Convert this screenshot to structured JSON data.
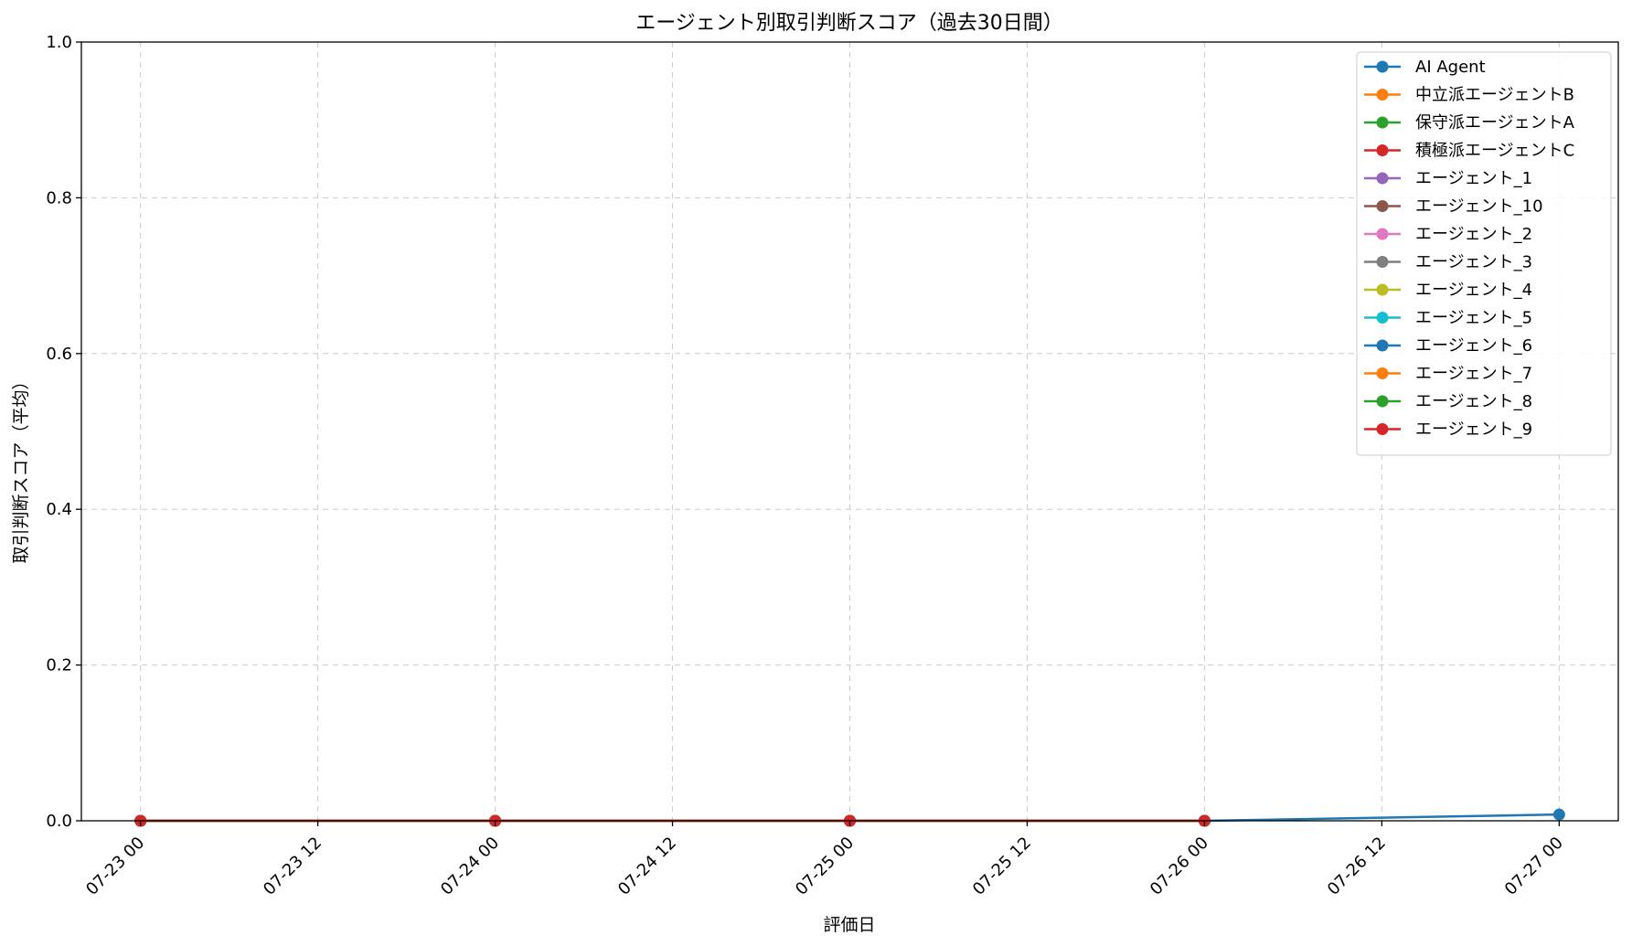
{
  "chart_data": {
    "type": "line",
    "title": "エージェント別取引判断スコア（過去30日間）",
    "xlabel": "評価日",
    "ylabel": "取引判断スコア（平均）",
    "x_type": "datetime",
    "xlim": [
      "2025-07-22 20:00",
      "2025-07-27 04:00"
    ],
    "ylim": [
      0,
      1.0
    ],
    "x_ticks": [
      {
        "value": "2025-07-23 00:00",
        "label": "07-23 00"
      },
      {
        "value": "2025-07-23 12:00",
        "label": "07-23 12"
      },
      {
        "value": "2025-07-24 00:00",
        "label": "07-24 00"
      },
      {
        "value": "2025-07-24 12:00",
        "label": "07-24 12"
      },
      {
        "value": "2025-07-25 00:00",
        "label": "07-25 00"
      },
      {
        "value": "2025-07-25 12:00",
        "label": "07-25 12"
      },
      {
        "value": "2025-07-26 00:00",
        "label": "07-26 00"
      },
      {
        "value": "2025-07-26 12:00",
        "label": "07-26 12"
      },
      {
        "value": "2025-07-27 00:00",
        "label": "07-27 00"
      }
    ],
    "y_ticks": [
      {
        "value": 0.0,
        "label": "0.0"
      },
      {
        "value": 0.2,
        "label": "0.2"
      },
      {
        "value": 0.4,
        "label": "0.4"
      },
      {
        "value": 0.6,
        "label": "0.6"
      },
      {
        "value": 0.8,
        "label": "0.8"
      },
      {
        "value": 1.0,
        "label": "1.0"
      }
    ],
    "grid": true,
    "legend_position": "top-right",
    "series": [
      {
        "name": "AI Agent",
        "color": "#1f77b4",
        "points": [
          {
            "x": "2025-07-26 00:00",
            "y": 0.0
          },
          {
            "x": "2025-07-27 00:00",
            "y": 0.008
          }
        ]
      },
      {
        "name": "中立派エージェントB",
        "color": "#ff7f0e",
        "points": [
          {
            "x": "2025-07-23 00:00",
            "y": 0.0
          },
          {
            "x": "2025-07-24 00:00",
            "y": 0.0
          },
          {
            "x": "2025-07-25 00:00",
            "y": 0.0
          },
          {
            "x": "2025-07-26 00:00",
            "y": 0.0
          }
        ]
      },
      {
        "name": "保守派エージェントA",
        "color": "#2ca02c",
        "points": [
          {
            "x": "2025-07-23 00:00",
            "y": 0.0
          },
          {
            "x": "2025-07-24 00:00",
            "y": 0.0
          },
          {
            "x": "2025-07-25 00:00",
            "y": 0.0
          },
          {
            "x": "2025-07-26 00:00",
            "y": 0.0
          }
        ]
      },
      {
        "name": "積極派エージェントC",
        "color": "#d62728",
        "points": [
          {
            "x": "2025-07-23 00:00",
            "y": 0.0
          },
          {
            "x": "2025-07-24 00:00",
            "y": 0.0
          },
          {
            "x": "2025-07-25 00:00",
            "y": 0.0
          },
          {
            "x": "2025-07-26 00:00",
            "y": 0.0
          }
        ]
      },
      {
        "name": "エージェント_1",
        "color": "#9467bd",
        "points": [
          {
            "x": "2025-07-23 00:00",
            "y": 0.0
          },
          {
            "x": "2025-07-24 00:00",
            "y": 0.0
          },
          {
            "x": "2025-07-25 00:00",
            "y": 0.0
          },
          {
            "x": "2025-07-26 00:00",
            "y": 0.0
          }
        ]
      },
      {
        "name": "エージェント_10",
        "color": "#8c564b",
        "points": [
          {
            "x": "2025-07-23 00:00",
            "y": 0.0
          },
          {
            "x": "2025-07-24 00:00",
            "y": 0.0
          },
          {
            "x": "2025-07-25 00:00",
            "y": 0.0
          },
          {
            "x": "2025-07-26 00:00",
            "y": 0.0
          }
        ]
      },
      {
        "name": "エージェント_2",
        "color": "#e377c2",
        "points": [
          {
            "x": "2025-07-23 00:00",
            "y": 0.0
          },
          {
            "x": "2025-07-24 00:00",
            "y": 0.0
          },
          {
            "x": "2025-07-25 00:00",
            "y": 0.0
          },
          {
            "x": "2025-07-26 00:00",
            "y": 0.0
          }
        ]
      },
      {
        "name": "エージェント_3",
        "color": "#7f7f7f",
        "points": [
          {
            "x": "2025-07-23 00:00",
            "y": 0.0
          },
          {
            "x": "2025-07-24 00:00",
            "y": 0.0
          },
          {
            "x": "2025-07-25 00:00",
            "y": 0.0
          },
          {
            "x": "2025-07-26 00:00",
            "y": 0.0
          }
        ]
      },
      {
        "name": "エージェント_4",
        "color": "#bcbd22",
        "points": [
          {
            "x": "2025-07-23 00:00",
            "y": 0.0
          },
          {
            "x": "2025-07-24 00:00",
            "y": 0.0
          },
          {
            "x": "2025-07-25 00:00",
            "y": 0.0
          },
          {
            "x": "2025-07-26 00:00",
            "y": 0.0
          }
        ]
      },
      {
        "name": "エージェント_5",
        "color": "#17becf",
        "points": [
          {
            "x": "2025-07-23 00:00",
            "y": 0.0
          },
          {
            "x": "2025-07-24 00:00",
            "y": 0.0
          },
          {
            "x": "2025-07-25 00:00",
            "y": 0.0
          },
          {
            "x": "2025-07-26 00:00",
            "y": 0.0
          }
        ]
      },
      {
        "name": "エージェント_6",
        "color": "#1f77b4",
        "points": [
          {
            "x": "2025-07-23 00:00",
            "y": 0.0
          },
          {
            "x": "2025-07-24 00:00",
            "y": 0.0
          },
          {
            "x": "2025-07-25 00:00",
            "y": 0.0
          },
          {
            "x": "2025-07-26 00:00",
            "y": 0.0
          }
        ]
      },
      {
        "name": "エージェント_7",
        "color": "#ff7f0e",
        "points": [
          {
            "x": "2025-07-23 00:00",
            "y": 0.0
          },
          {
            "x": "2025-07-24 00:00",
            "y": 0.0
          },
          {
            "x": "2025-07-25 00:00",
            "y": 0.0
          },
          {
            "x": "2025-07-26 00:00",
            "y": 0.0
          }
        ]
      },
      {
        "name": "エージェント_8",
        "color": "#2ca02c",
        "points": [
          {
            "x": "2025-07-23 00:00",
            "y": 0.0
          },
          {
            "x": "2025-07-24 00:00",
            "y": 0.0
          },
          {
            "x": "2025-07-25 00:00",
            "y": 0.0
          },
          {
            "x": "2025-07-26 00:00",
            "y": 0.0
          }
        ]
      },
      {
        "name": "エージェント_9",
        "color": "#d62728",
        "points": [
          {
            "x": "2025-07-23 00:00",
            "y": 0.0
          },
          {
            "x": "2025-07-24 00:00",
            "y": 0.0
          },
          {
            "x": "2025-07-25 00:00",
            "y": 0.0
          },
          {
            "x": "2025-07-26 00:00",
            "y": 0.0
          }
        ]
      }
    ]
  }
}
